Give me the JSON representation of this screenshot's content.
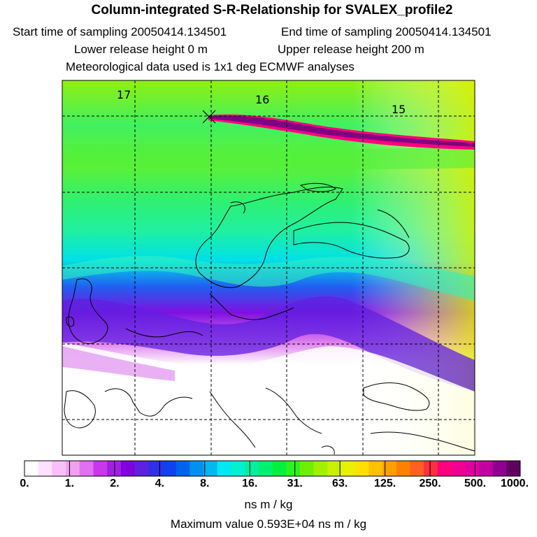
{
  "header": {
    "title": "Column-integrated S-R-Relationship for SVALEX_profile2",
    "start_time": "Start time of sampling 20050414.134501",
    "end_time": "End time of sampling 20050414.134501",
    "lower_height": "Lower release height    0 m",
    "upper_height": "Upper release height  200 m",
    "met_data": "Meteorological data used is 1x1 deg ECMWF analyses"
  },
  "map": {
    "track_labels": [
      "17",
      "16",
      "15"
    ]
  },
  "colorbar": {
    "tick_labels": [
      "0.",
      "1.",
      "2.",
      "4.",
      "8.",
      "16.",
      "31.",
      "63.",
      "125.",
      "250.",
      "500.",
      "1000."
    ],
    "colors": [
      "#ffffff",
      "#ffe0ff",
      "#f8c0f8",
      "#f0a0f0",
      "#e070f0",
      "#c838e8",
      "#a020e0",
      "#8000e0",
      "#6020e0",
      "#3030e8",
      "#1040f0",
      "#0060f0",
      "#0090f0",
      "#00b8f0",
      "#00e8f0",
      "#00f0d0",
      "#00f0a0",
      "#00f070",
      "#00f040",
      "#30f020",
      "#70f000",
      "#a0f000",
      "#c8f000",
      "#e8f000",
      "#ffe000",
      "#ffc000",
      "#ffa000",
      "#ff8000",
      "#ff6020",
      "#ff3040",
      "#ff0080",
      "#f00090",
      "#e000a0",
      "#c000a0",
      "#900090",
      "#600060"
    ],
    "unit": "ns m / kg"
  },
  "footer": {
    "max_value": "Maximum value  0.593E+04 ns m / kg"
  }
}
